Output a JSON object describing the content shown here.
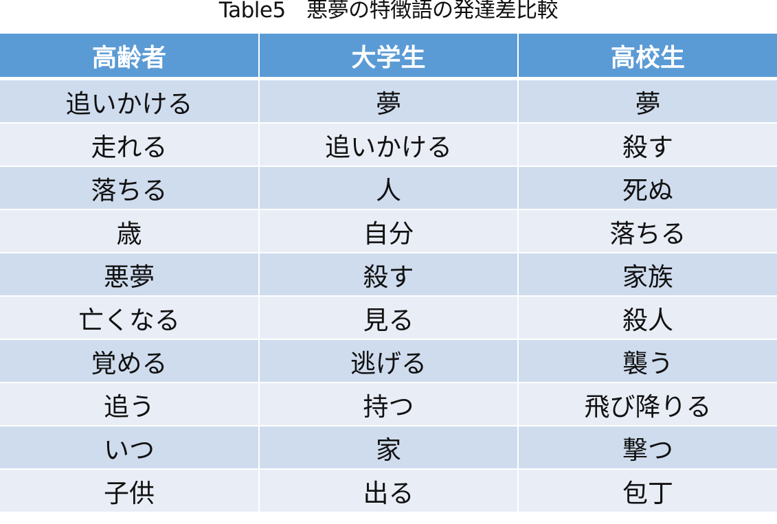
{
  "title": "Table5　悪夢の特徴語の発達差比較",
  "colors": {
    "header_bg": "#5b9bd5",
    "row_odd_bg": "#cfdcee",
    "row_even_bg": "#e9edf6"
  },
  "headers": [
    "高齢者",
    "大学生",
    "高校生"
  ],
  "rows": [
    [
      "追いかける",
      "夢",
      "夢"
    ],
    [
      "走れる",
      "追いかける",
      "殺す"
    ],
    [
      "落ちる",
      "人",
      "死ぬ"
    ],
    [
      "歳",
      "自分",
      "落ちる"
    ],
    [
      "悪夢",
      "殺す",
      "家族"
    ],
    [
      "亡くなる",
      "見る",
      "殺人"
    ],
    [
      "覚める",
      "逃げる",
      "襲う"
    ],
    [
      "追う",
      "持つ",
      "飛び降りる"
    ],
    [
      "いつ",
      "家",
      "撃つ"
    ],
    [
      "子供",
      "出る",
      "包丁"
    ]
  ]
}
